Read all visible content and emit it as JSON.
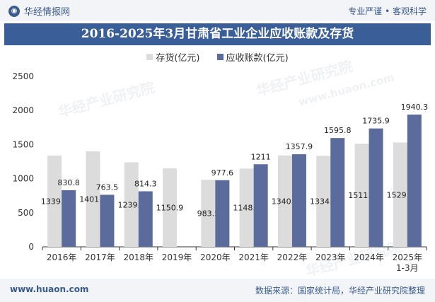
{
  "header": {
    "brand": "华经情报网",
    "tagline": "专业严谨 • 客观科学"
  },
  "watermark": {
    "cn": "华经产业研究院",
    "url": "www.huaon.com"
  },
  "footer": {
    "website": "www.huaon.com",
    "source": "数据来源：国家统计局，华经产业研究院整理"
  },
  "colors": {
    "inventory": "#dcdcdc",
    "receivables": "#5a6b9c",
    "title_bg": "#3a5f98"
  },
  "chart_data": {
    "type": "bar",
    "title": "2016-2025年3月甘肃省工业企业应收账款及存货",
    "categories": [
      "2016年",
      "2017年",
      "2018年",
      "2019年",
      "2020年",
      "2021年",
      "2022年",
      "2023年",
      "2024年",
      "2025年\n1-3月"
    ],
    "series": [
      {
        "name": "存货(亿元)",
        "values": [
          1339.4,
          1401.7,
          1239.3,
          1150.9,
          983.5,
          1148.2,
          1340.2,
          1334.6,
          1511.5,
          1529.5
        ],
        "labels": [
          "1339.4",
          "1401.7",
          "1239.3",
          "1150.9",
          "983.5",
          "1148.2",
          "1340.2",
          "1334.6",
          "1511.5",
          "1529.5"
        ]
      },
      {
        "name": "应收账款(亿元)",
        "values": [
          830.8,
          763.5,
          814.3,
          null,
          977.6,
          1211,
          1357.9,
          1595.8,
          1735.9,
          1940.3
        ],
        "labels": [
          "830.8",
          "763.5",
          "814.3",
          "",
          "977.6",
          "1211",
          "1357.9",
          "1595.8",
          "1735.9",
          "1940.3"
        ]
      }
    ],
    "yticks": [
      "0",
      "500",
      "1000",
      "1500",
      "2000",
      "2500"
    ],
    "ylim": [
      0,
      2500
    ],
    "xlabel": "",
    "ylabel": ""
  }
}
